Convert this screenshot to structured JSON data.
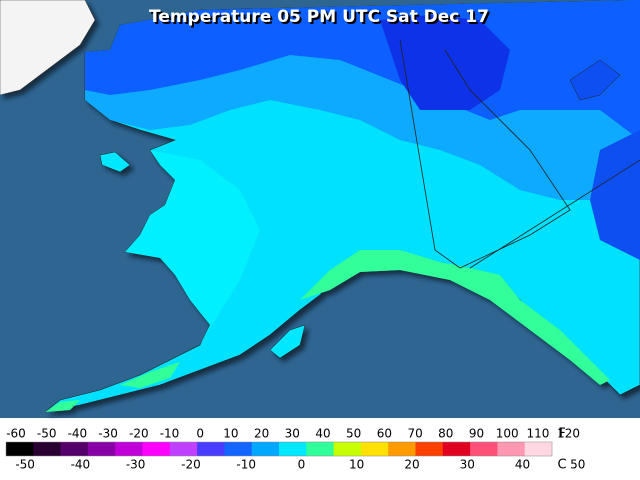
{
  "title": "Temperature 05 PM UTC Sat Dec 17",
  "legend": {
    "f_unit": "F",
    "c_unit": "C",
    "f_ticks": [
      -60,
      -50,
      -40,
      -30,
      -20,
      -10,
      0,
      10,
      20,
      30,
      40,
      50,
      60,
      70,
      80,
      90,
      100,
      110,
      120
    ],
    "c_ticks": [
      -50,
      -40,
      -30,
      -20,
      -10,
      0,
      10,
      20,
      30,
      40,
      50
    ],
    "colors": [
      "#000000",
      "#2a0033",
      "#55006a",
      "#8a00a8",
      "#c000d8",
      "#ff00ff",
      "#c040ff",
      "#4a3cff",
      "#1464ff",
      "#00a8ff",
      "#00e8ff",
      "#30ff9a",
      "#c8ff00",
      "#ffe000",
      "#ff9a00",
      "#ff4000",
      "#e00020",
      "#ff5078",
      "#ff98b0",
      "#ffd8e4"
    ]
  }
}
